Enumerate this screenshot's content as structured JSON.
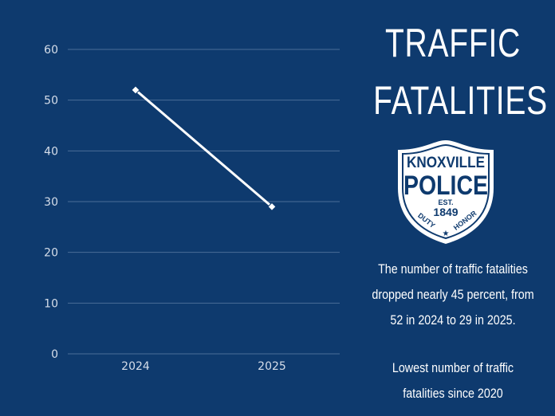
{
  "title": {
    "line1": "TRAFFIC",
    "line2": "FATALITIES"
  },
  "badge": {
    "line1": "KNOXVILLE",
    "line2": "POLICE",
    "est": "EST.",
    "year": "1849",
    "motto_left": "DUTY",
    "motto_right": "HONOR",
    "star": "★"
  },
  "caption": {
    "lines": [
      "The number of traffic fatalities",
      "dropped nearly 45 percent, from",
      "52 in 2024 to 29 in 2025."
    ]
  },
  "note": {
    "lines": [
      "Lowest number of traffic",
      "fatalities since 2020"
    ]
  },
  "colors": {
    "background": "#0e3a6e",
    "gridline": "#4a6d98",
    "series": "#ffffff"
  },
  "chart_data": {
    "type": "line",
    "categories": [
      "2024",
      "2025"
    ],
    "series": [
      {
        "values": [
          52,
          29
        ]
      }
    ],
    "title": "",
    "xlabel": "",
    "ylabel": "",
    "ylim": [
      0,
      60
    ],
    "yticks": [
      0,
      10,
      20,
      30,
      40,
      50,
      60
    ],
    "grid": true,
    "marker": "diamond"
  }
}
